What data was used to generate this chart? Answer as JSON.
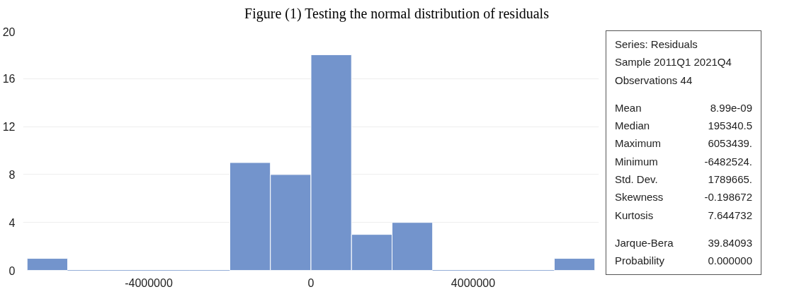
{
  "chart_data": {
    "type": "histogram",
    "title": "Figure (1) Testing the normal distribution of residuals",
    "bins": [
      -7000000,
      -6000000,
      -5000000,
      -4000000,
      -3000000,
      -2000000,
      -1000000,
      0,
      1000000,
      2000000,
      3000000,
      4000000,
      5000000,
      6000000,
      7000000
    ],
    "values": [
      1,
      0,
      0,
      0,
      0,
      9,
      8,
      18,
      3,
      4,
      0,
      0,
      0,
      1
    ],
    "color": "#7394cc",
    "xlim": [
      -7100000,
      7100000
    ],
    "xticks": [
      -4000000,
      0,
      4000000
    ],
    "ylim": [
      0,
      20
    ],
    "yticks": [
      0,
      4,
      8,
      12,
      16,
      20
    ],
    "grid": "y",
    "annotations": [
      "Series: Residuals",
      "Sample 2011Q1 2021Q4",
      "Observations 44",
      "Mean",
      "8.99e-09",
      "Median",
      "195340.5",
      "Maximum",
      "6053439.",
      "Minimum",
      "-6482524.",
      "Std. Dev.",
      "1789665.",
      "Skewness",
      "-0.198672",
      "Kurtosis",
      "7.644732",
      "Jarque-Bera",
      "39.84093",
      "Probability",
      "0.000000"
    ]
  }
}
